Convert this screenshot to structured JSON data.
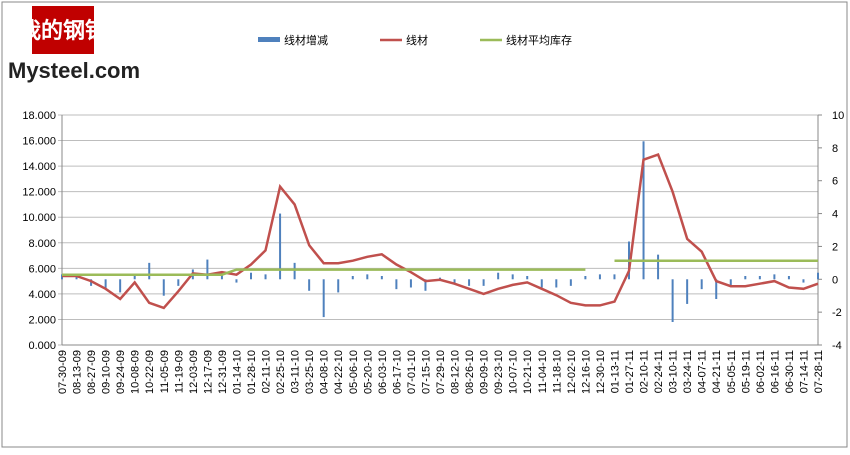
{
  "logo": {
    "cn": "我的钢铁",
    "en": "Mysteel.com"
  },
  "chart_data": {
    "type": "combo",
    "categories": [
      "07-30-09",
      "08-13-09",
      "08-27-09",
      "09-10-09",
      "09-24-09",
      "10-08-09",
      "10-22-09",
      "11-05-09",
      "11-19-09",
      "12-03-09",
      "12-17-09",
      "12-31-09",
      "01-14-10",
      "01-28-10",
      "02-11-10",
      "02-25-10",
      "03-11-10",
      "03-25-10",
      "04-08-10",
      "04-22-10",
      "05-06-10",
      "05-20-10",
      "06-03-10",
      "06-17-10",
      "07-01-10",
      "07-15-10",
      "07-29-10",
      "08-12-10",
      "08-26-10",
      "09-09-10",
      "09-23-10",
      "10-07-10",
      "10-21-10",
      "11-04-10",
      "11-18-10",
      "12-02-10",
      "12-16-10",
      "12-30-10",
      "01-13-11",
      "01-27-11",
      "02-10-11",
      "02-24-11",
      "03-10-11",
      "03-24-11",
      "04-07-11",
      "04-21-11",
      "05-05-11",
      "05-19-11",
      "06-02-11",
      "06-16-11",
      "06-30-11",
      "07-14-11",
      "07-28-11"
    ],
    "series": [
      {
        "name": "线材增减",
        "kind": "bar",
        "axis": "y2",
        "color": "#4f81bd",
        "values": [
          0.3,
          0.2,
          -0.4,
          -0.6,
          -0.8,
          0.2,
          1.0,
          -1.0,
          -0.4,
          0.6,
          1.2,
          0.4,
          -0.2,
          0.4,
          0.3,
          4.0,
          1.0,
          -0.7,
          -2.3,
          -0.8,
          0.2,
          0.3,
          0.2,
          -0.6,
          -0.5,
          -0.7,
          0.1,
          -0.3,
          -0.4,
          -0.4,
          0.4,
          0.3,
          0.2,
          -0.5,
          -0.5,
          -0.4,
          0.2,
          0.3,
          0.3,
          2.3,
          8.4,
          1.5,
          -2.6,
          -1.5,
          -0.6,
          -1.2,
          -0.4,
          0.2,
          0.2,
          0.3,
          0.2,
          -0.2,
          0.4
        ]
      },
      {
        "name": "线材",
        "kind": "line",
        "axis": "y",
        "color": "#c0504d",
        "values": [
          5.4,
          5.4,
          5.0,
          4.4,
          3.6,
          4.9,
          3.3,
          2.9,
          4.2,
          5.6,
          5.5,
          5.7,
          5.5,
          6.3,
          7.4,
          12.4,
          11.0,
          7.8,
          6.4,
          6.4,
          6.6,
          6.9,
          7.1,
          6.3,
          5.7,
          5.0,
          5.1,
          4.8,
          4.4,
          4.0,
          4.4,
          4.7,
          4.9,
          4.4,
          3.9,
          3.3,
          3.1,
          3.1,
          3.4,
          5.8,
          14.5,
          14.9,
          12.0,
          8.3,
          7.3,
          5.0,
          4.6,
          4.6,
          4.8,
          5.0,
          4.5,
          4.4,
          4.8
        ]
      },
      {
        "name": "线材平均库存",
        "kind": "line",
        "axis": "y",
        "color": "#9bbb59",
        "values": [
          5.5,
          5.5,
          5.5,
          5.5,
          5.5,
          5.5,
          5.5,
          5.5,
          5.5,
          5.5,
          5.5,
          5.5,
          5.9,
          5.9,
          5.9,
          5.9,
          5.9,
          5.9,
          5.9,
          5.9,
          5.9,
          5.9,
          5.9,
          5.9,
          5.9,
          5.9,
          5.9,
          5.9,
          5.9,
          5.9,
          5.9,
          5.9,
          5.9,
          5.9,
          5.9,
          5.9,
          5.9,
          null,
          6.6,
          6.6,
          6.6,
          6.6,
          6.6,
          6.6,
          6.6,
          6.6,
          6.6,
          6.6,
          6.6,
          6.6,
          6.6,
          6.6,
          6.6
        ]
      }
    ],
    "ylim": [
      0,
      18
    ],
    "yticks": [
      {
        "value": 0,
        "label": "0.000"
      },
      {
        "value": 2,
        "label": "2.000"
      },
      {
        "value": 4,
        "label": "4.000"
      },
      {
        "value": 6,
        "label": "6.000"
      },
      {
        "value": 8,
        "label": "8.000"
      },
      {
        "value": 10,
        "label": "10.000"
      },
      {
        "value": 12,
        "label": "12.000"
      },
      {
        "value": 14,
        "label": "14.000"
      },
      {
        "value": 16,
        "label": "16.000"
      },
      {
        "value": 18,
        "label": "18.000"
      }
    ],
    "y2lim": [
      -4,
      10
    ],
    "y2ticks": [
      -4,
      -2,
      0,
      2,
      4,
      6,
      8,
      10
    ],
    "grid": true
  }
}
